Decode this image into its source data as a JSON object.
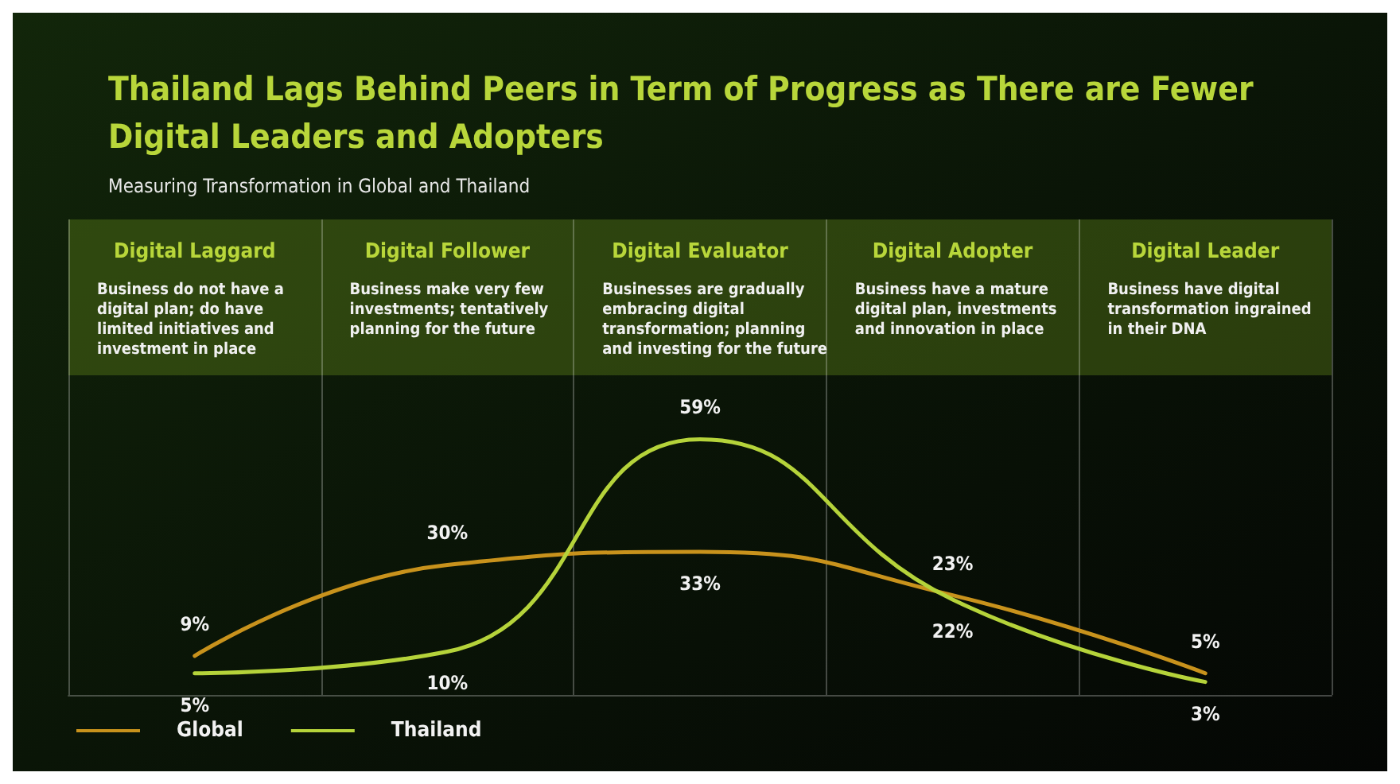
{
  "chart_data": {
    "type": "line",
    "title": "Thailand Lags Behind Peers in Term of Progress as There are Fewer\nDigital Leaders and Adopters",
    "subtitle": "Measuring Transformation in Global and Thailand",
    "categories": [
      "Digital Laggard",
      "Digital Follower",
      "Digital Evaluator",
      "Digital Adopter",
      "Digital Leader"
    ],
    "annotations": [
      "Business do not have a\ndigital plan; do have\nlimited initiatives and\ninvestment in place",
      "Business make very few\ninvestments; tentatively\nplanning for the future",
      "Businesses are gradually\nembracing digital\ntransformation; planning\nand investing for the future",
      "Business have a mature\ndigital plan, investments\nand innovation in place",
      "Business have digital\ntransformation ingrained\nin their DNA"
    ],
    "series": [
      {
        "name": "Global",
        "color": "#c8921c",
        "values": [
          9,
          30,
          33,
          23,
          5
        ],
        "value_labels": [
          "9%",
          "30%",
          "33%",
          "23%",
          "5%"
        ]
      },
      {
        "name": "Thailand",
        "color": "#b5d33a",
        "values": [
          5,
          10,
          59,
          22,
          3
        ],
        "value_labels": [
          "5%",
          "10%",
          "59%",
          "22%",
          "3%"
        ]
      }
    ],
    "grid": "x",
    "legend": "bottom left",
    "marker": "none",
    "line_style": "solid"
  }
}
